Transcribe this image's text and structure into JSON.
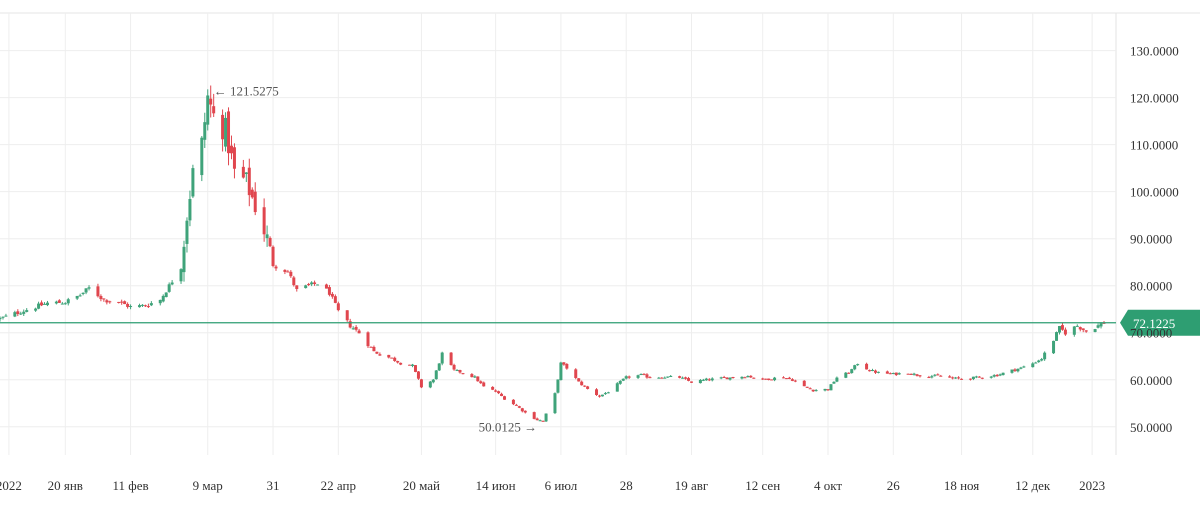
{
  "chart_data": {
    "type": "candlestick",
    "ylim": [
      44,
      138
    ],
    "y_ticks": [
      50,
      60,
      70,
      80,
      90,
      100,
      110,
      120,
      130
    ],
    "y_tick_labels": [
      "50.0000",
      "60.0000",
      "70.0000",
      "80.0000",
      "90.0000",
      "100.0000",
      "110.0000",
      "120.0000",
      "130.0000"
    ],
    "x_start": "2021-12-29",
    "x_end": "2023-01-05",
    "x_ticks": [
      {
        "date": "2022-01-01",
        "label": "2022"
      },
      {
        "date": "2022-01-20",
        "label": "20 янв"
      },
      {
        "date": "2022-02-11",
        "label": "11 фев"
      },
      {
        "date": "2022-03-09",
        "label": "9 мар"
      },
      {
        "date": "2022-03-31",
        "label": "31"
      },
      {
        "date": "2022-04-22",
        "label": "22 апр"
      },
      {
        "date": "2022-05-20",
        "label": "20 май"
      },
      {
        "date": "2022-06-14",
        "label": "14 июн"
      },
      {
        "date": "2022-07-06",
        "label": "6 июл"
      },
      {
        "date": "2022-07-28",
        "label": "28"
      },
      {
        "date": "2022-08-19",
        "label": "19 авг"
      },
      {
        "date": "2022-09-12",
        "label": "12 сен"
      },
      {
        "date": "2022-10-04",
        "label": "4 окт"
      },
      {
        "date": "2022-10-26",
        "label": "26"
      },
      {
        "date": "2022-11-18",
        "label": "18 ноя"
      },
      {
        "date": "2022-12-12",
        "label": "12 дек"
      },
      {
        "date": "2023-01-01",
        "label": "2023"
      }
    ],
    "close_series": [
      [
        "2021-12-29",
        73.0
      ],
      [
        "2022-01-05",
        74.5
      ],
      [
        "2022-01-10",
        75.5
      ],
      [
        "2022-01-14",
        76.3
      ],
      [
        "2022-01-20",
        76.5
      ],
      [
        "2022-01-25",
        78.0
      ],
      [
        "2022-01-28",
        79.5
      ],
      [
        "2022-02-02",
        77.0
      ],
      [
        "2022-02-07",
        76.5
      ],
      [
        "2022-02-11",
        75.5
      ],
      [
        "2022-02-16",
        75.8
      ],
      [
        "2022-02-21",
        77.0
      ],
      [
        "2022-02-24",
        80.0
      ],
      [
        "2022-02-28",
        84.0
      ],
      [
        "2022-03-02",
        95.0
      ],
      [
        "2022-03-04",
        104.0
      ],
      [
        "2022-03-07",
        110.0
      ],
      [
        "2022-03-09",
        120.0
      ],
      [
        "2022-03-11",
        116.0
      ],
      [
        "2022-03-15",
        113.0
      ],
      [
        "2022-03-18",
        104.0
      ],
      [
        "2022-03-22",
        102.0
      ],
      [
        "2022-03-25",
        97.0
      ],
      [
        "2022-03-29",
        90.0
      ],
      [
        "2022-03-31",
        84.5
      ],
      [
        "2022-04-05",
        83.0
      ],
      [
        "2022-04-08",
        79.0
      ],
      [
        "2022-04-12",
        80.0
      ],
      [
        "2022-04-15",
        80.5
      ],
      [
        "2022-04-19",
        78.5
      ],
      [
        "2022-04-22",
        74.5
      ],
      [
        "2022-04-26",
        71.5
      ],
      [
        "2022-04-29",
        70.0
      ],
      [
        "2022-05-04",
        66.0
      ],
      [
        "2022-05-10",
        64.5
      ],
      [
        "2022-05-13",
        63.5
      ],
      [
        "2022-05-17",
        63.0
      ],
      [
        "2022-05-20",
        58.5
      ],
      [
        "2022-05-24",
        60.0
      ],
      [
        "2022-05-27",
        65.5
      ],
      [
        "2022-05-31",
        62.0
      ],
      [
        "2022-06-03",
        61.5
      ],
      [
        "2022-06-07",
        60.5
      ],
      [
        "2022-06-10",
        58.5
      ],
      [
        "2022-06-14",
        57.5
      ],
      [
        "2022-06-17",
        56.0
      ],
      [
        "2022-06-21",
        54.5
      ],
      [
        "2022-06-24",
        53.0
      ],
      [
        "2022-06-28",
        51.5
      ],
      [
        "2022-06-30",
        51.2
      ],
      [
        "2022-07-04",
        57.0
      ],
      [
        "2022-07-06",
        63.5
      ],
      [
        "2022-07-08",
        62.5
      ],
      [
        "2022-07-12",
        59.5
      ],
      [
        "2022-07-15",
        58.0
      ],
      [
        "2022-07-19",
        56.5
      ],
      [
        "2022-07-22",
        57.5
      ],
      [
        "2022-07-26",
        59.5
      ],
      [
        "2022-07-28",
        60.5
      ],
      [
        "2022-08-02",
        61.0
      ],
      [
        "2022-08-05",
        60.5
      ],
      [
        "2022-08-10",
        60.6
      ],
      [
        "2022-08-15",
        60.5
      ],
      [
        "2022-08-19",
        59.5
      ],
      [
        "2022-08-24",
        60.0
      ],
      [
        "2022-08-29",
        60.3
      ],
      [
        "2022-09-02",
        60.5
      ],
      [
        "2022-09-07",
        60.8
      ],
      [
        "2022-09-12",
        60.0
      ],
      [
        "2022-09-15",
        60.3
      ],
      [
        "2022-09-19",
        60.5
      ],
      [
        "2022-09-22",
        60.0
      ],
      [
        "2022-09-26",
        58.5
      ],
      [
        "2022-09-29",
        57.8
      ],
      [
        "2022-10-04",
        58.0
      ],
      [
        "2022-10-07",
        60.5
      ],
      [
        "2022-10-11",
        61.5
      ],
      [
        "2022-10-14",
        63.5
      ],
      [
        "2022-10-18",
        62.0
      ],
      [
        "2022-10-21",
        61.5
      ],
      [
        "2022-10-26",
        61.2
      ],
      [
        "2022-10-31",
        61.5
      ],
      [
        "2022-11-03",
        61.0
      ],
      [
        "2022-11-08",
        60.8
      ],
      [
        "2022-11-11",
        60.8
      ],
      [
        "2022-11-15",
        60.3
      ],
      [
        "2022-11-18",
        60.2
      ],
      [
        "2022-11-22",
        60.4
      ],
      [
        "2022-11-25",
        60.6
      ],
      [
        "2022-11-30",
        61.0
      ],
      [
        "2022-12-05",
        62.0
      ],
      [
        "2022-12-08",
        62.5
      ],
      [
        "2022-12-12",
        63.5
      ],
      [
        "2022-12-15",
        64.5
      ],
      [
        "2022-12-19",
        68.5
      ],
      [
        "2022-12-21",
        71.0
      ],
      [
        "2022-12-23",
        70.0
      ],
      [
        "2022-12-27",
        71.5
      ],
      [
        "2022-12-30",
        70.3
      ],
      [
        "2023-01-03",
        71.5
      ],
      [
        "2023-01-05",
        72.1225
      ]
    ],
    "current_price": 72.1225,
    "current_price_label": "72.1225",
    "annotations": [
      {
        "date": "2022-03-09",
        "value": 121.5275,
        "label": "121.5275",
        "arrow": "←",
        "side": "right"
      },
      {
        "date": "2022-06-30",
        "value": 50.0125,
        "label": "50.0125",
        "arrow": "→",
        "side": "left"
      }
    ],
    "colors": {
      "up": "#3fa37a",
      "down": "#e0464e",
      "price_line": "#2e9e72",
      "price_label_bg": "#2e9e72",
      "grid": "#eeeeee",
      "text": "#333333"
    },
    "grid": true
  }
}
